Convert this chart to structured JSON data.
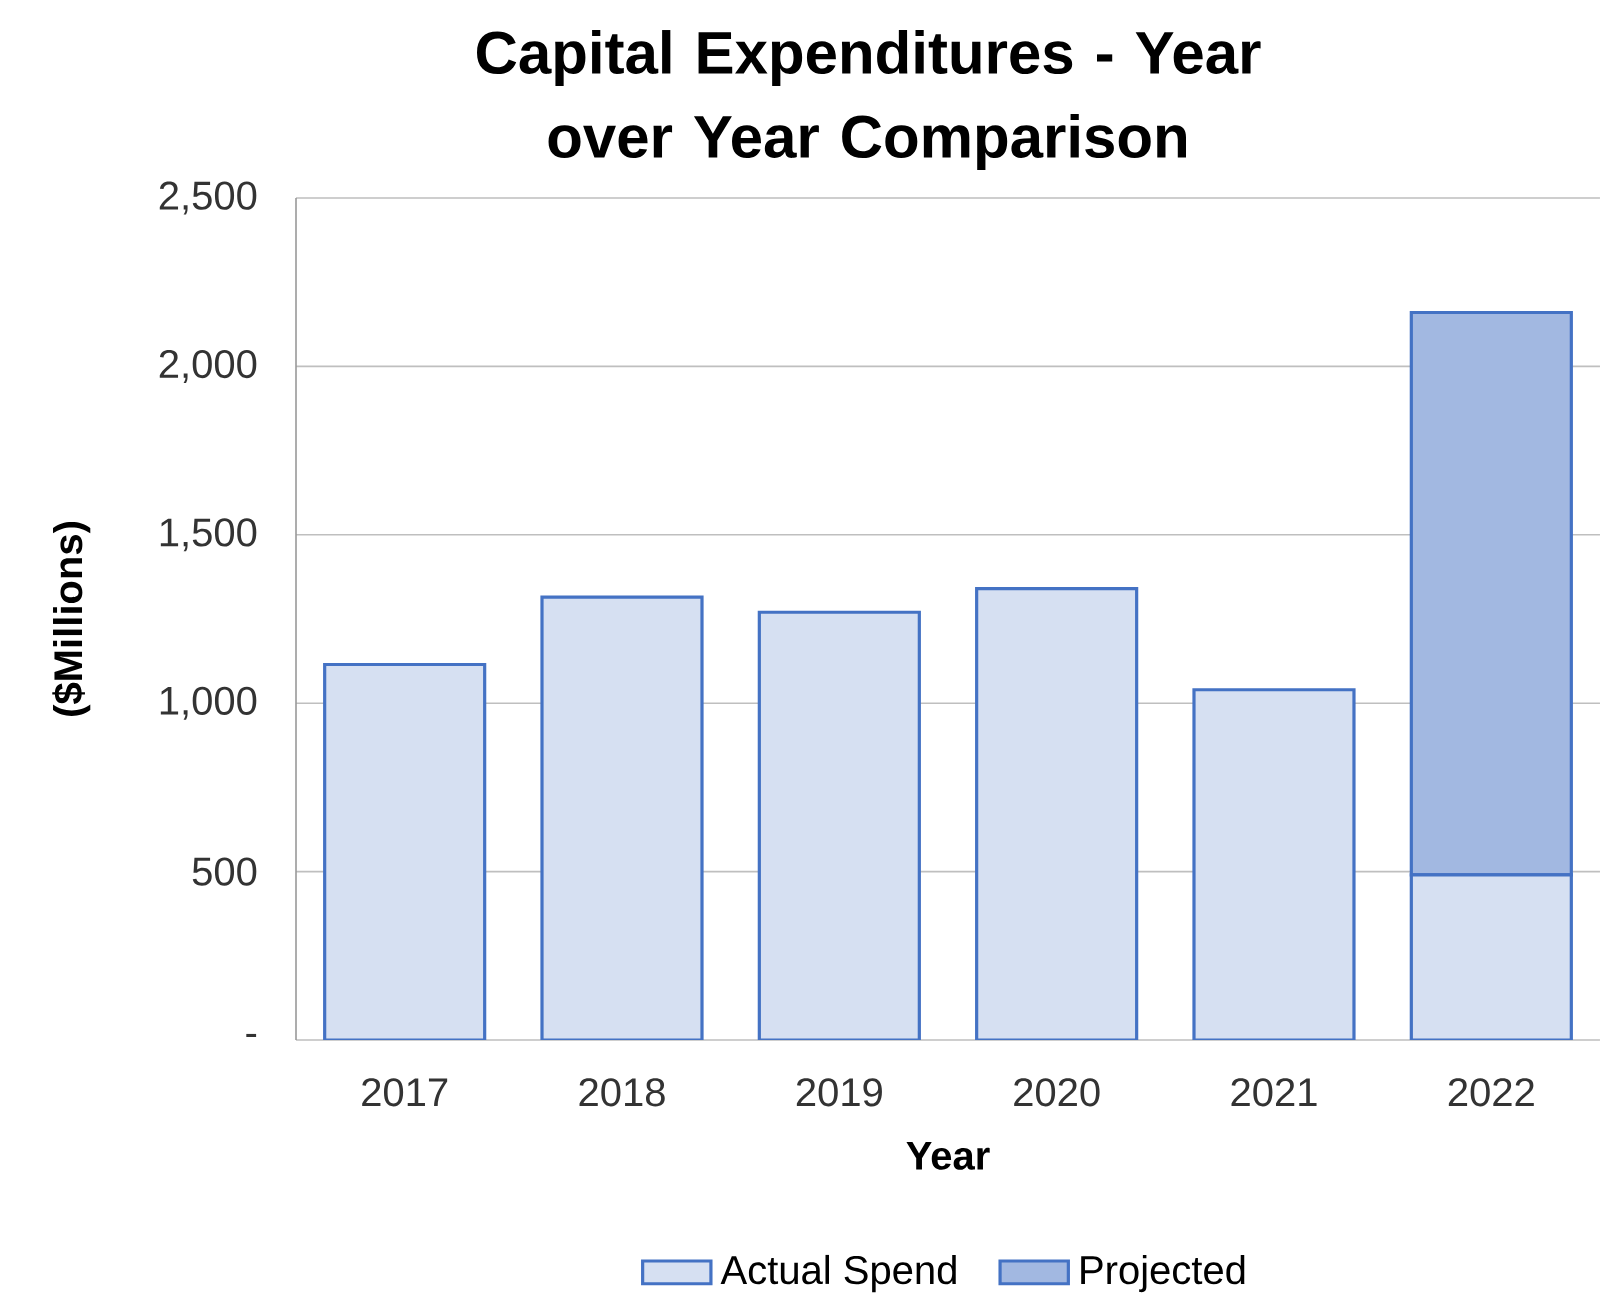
{
  "chart_data": {
    "type": "bar",
    "title": "Capital Expenditures - Year over Year Comparison",
    "xlabel": "Year",
    "ylabel": "($Millions)",
    "categories": [
      "2017",
      "2018",
      "2019",
      "2020",
      "2021",
      "2022"
    ],
    "stacked": true,
    "series": [
      {
        "name": "Actual Spend",
        "color": "#4472c4",
        "values": [
          1115,
          1315,
          1270,
          1340,
          1040,
          490
        ]
      },
      {
        "name": "Projected",
        "color": "#4472c4",
        "values": [
          null,
          null,
          null,
          null,
          null,
          1670
        ]
      }
    ],
    "ylim": [
      0,
      2500
    ],
    "yticks": [
      {
        "value": 0,
        "label": "-"
      },
      500,
      {
        "value": 1000,
        "label": "1,000"
      },
      {
        "value": 1500,
        "label": "1,500"
      },
      {
        "value": 2000,
        "label": "2,000"
      },
      {
        "value": 2500,
        "label": "2,500"
      }
    ],
    "grid": "y",
    "legend": "bottom"
  }
}
